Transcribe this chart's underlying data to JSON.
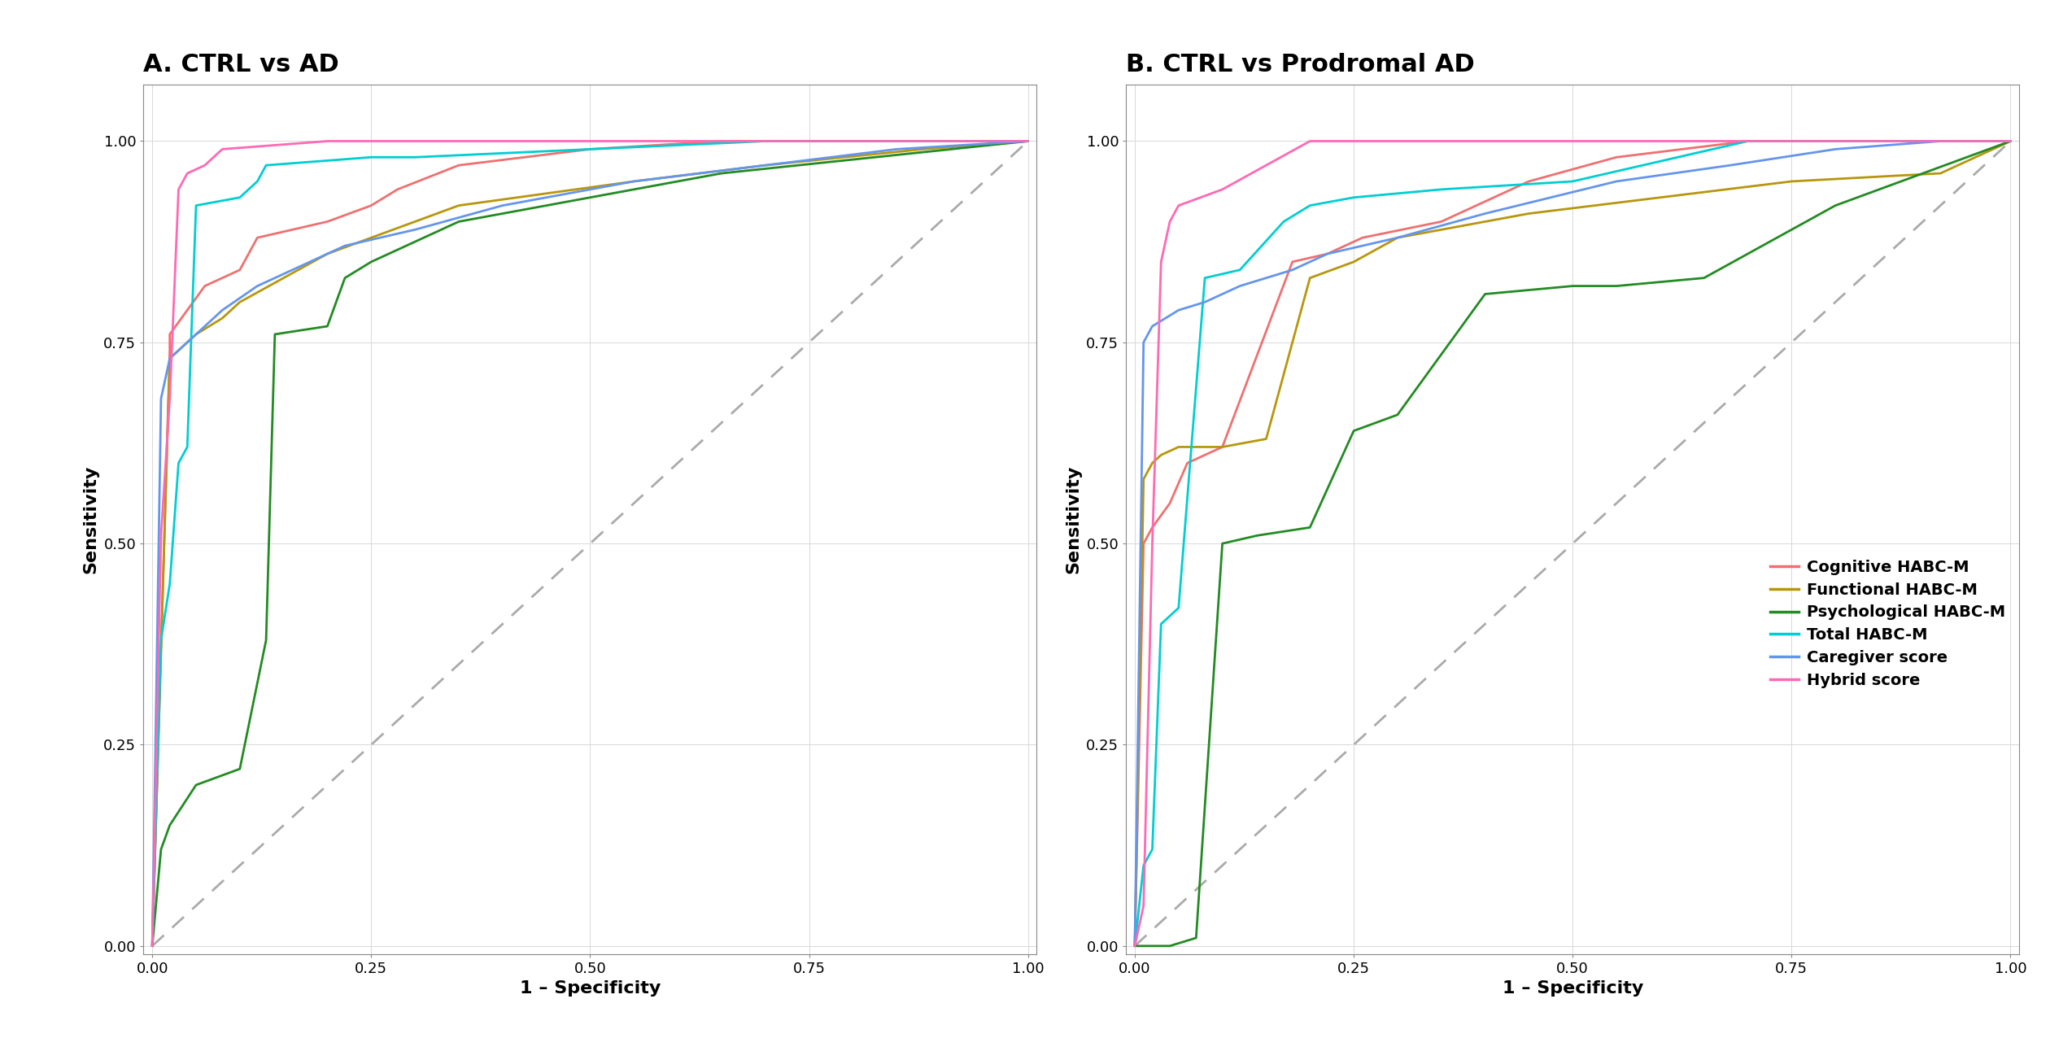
{
  "title_A": "A. CTRL vs AD",
  "title_B": "B. CTRL vs Prodromal AD",
  "xlabel": "1 – Specificity",
  "ylabel": "Sensitivity",
  "colors": {
    "cognitive": "#F07070",
    "functional": "#B8960C",
    "psychological": "#228B22",
    "total": "#00CED1",
    "caregiver": "#6495ED",
    "hybrid": "#FF69B4"
  },
  "legend_labels": [
    "Cognitive HABC-M",
    "Functional HABC-M",
    "Psychological HABC-M",
    "Total HABC-M",
    "Caregiver score",
    "Hybrid score"
  ],
  "panel_A": {
    "cognitive": {
      "x": [
        0.0,
        0.02,
        0.02,
        0.04,
        0.06,
        0.1,
        0.12,
        0.2,
        0.25,
        0.28,
        0.35,
        0.5,
        0.65,
        0.8,
        1.0
      ],
      "y": [
        0.0,
        0.74,
        0.76,
        0.79,
        0.82,
        0.84,
        0.88,
        0.9,
        0.92,
        0.94,
        0.97,
        0.99,
        1.0,
        1.0,
        1.0
      ]
    },
    "functional": {
      "x": [
        0.0,
        0.02,
        0.04,
        0.05,
        0.08,
        0.1,
        0.15,
        0.2,
        0.25,
        0.3,
        0.35,
        0.55,
        0.7,
        0.88,
        1.0
      ],
      "y": [
        0.0,
        0.73,
        0.75,
        0.76,
        0.78,
        0.8,
        0.83,
        0.86,
        0.88,
        0.9,
        0.92,
        0.95,
        0.97,
        0.99,
        1.0
      ]
    },
    "psychological": {
      "x": [
        0.0,
        0.01,
        0.02,
        0.05,
        0.1,
        0.13,
        0.14,
        0.2,
        0.22,
        0.25,
        0.35,
        0.5,
        0.65,
        1.0
      ],
      "y": [
        0.0,
        0.12,
        0.15,
        0.2,
        0.22,
        0.38,
        0.76,
        0.77,
        0.83,
        0.85,
        0.9,
        0.93,
        0.96,
        1.0
      ]
    },
    "total": {
      "x": [
        0.0,
        0.01,
        0.02,
        0.03,
        0.04,
        0.05,
        0.1,
        0.12,
        0.13,
        0.25,
        0.3,
        0.5,
        0.7,
        1.0
      ],
      "y": [
        0.0,
        0.38,
        0.45,
        0.6,
        0.62,
        0.92,
        0.93,
        0.95,
        0.97,
        0.98,
        0.98,
        0.99,
        1.0,
        1.0
      ]
    },
    "caregiver": {
      "x": [
        0.0,
        0.01,
        0.02,
        0.04,
        0.06,
        0.08,
        0.12,
        0.18,
        0.22,
        0.3,
        0.4,
        0.55,
        0.7,
        0.85,
        1.0
      ],
      "y": [
        0.0,
        0.68,
        0.73,
        0.75,
        0.77,
        0.79,
        0.82,
        0.85,
        0.87,
        0.89,
        0.92,
        0.95,
        0.97,
        0.99,
        1.0
      ]
    },
    "hybrid": {
      "x": [
        0.0,
        0.01,
        0.02,
        0.03,
        0.04,
        0.06,
        0.08,
        0.2,
        0.4,
        0.7,
        1.0
      ],
      "y": [
        0.0,
        0.51,
        0.68,
        0.94,
        0.96,
        0.97,
        0.99,
        1.0,
        1.0,
        1.0,
        1.0
      ]
    }
  },
  "panel_B": {
    "cognitive": {
      "x": [
        0.0,
        0.01,
        0.02,
        0.04,
        0.06,
        0.1,
        0.18,
        0.22,
        0.26,
        0.35,
        0.45,
        0.55,
        0.7,
        0.85,
        1.0
      ],
      "y": [
        0.0,
        0.5,
        0.52,
        0.55,
        0.6,
        0.62,
        0.85,
        0.86,
        0.88,
        0.9,
        0.95,
        0.98,
        1.0,
        1.0,
        1.0
      ]
    },
    "functional": {
      "x": [
        0.0,
        0.01,
        0.02,
        0.03,
        0.05,
        0.1,
        0.15,
        0.2,
        0.25,
        0.3,
        0.45,
        0.6,
        0.75,
        0.92,
        1.0
      ],
      "y": [
        0.0,
        0.58,
        0.6,
        0.61,
        0.62,
        0.62,
        0.63,
        0.83,
        0.85,
        0.88,
        0.91,
        0.93,
        0.95,
        0.96,
        1.0
      ]
    },
    "psychological": {
      "x": [
        0.0,
        0.02,
        0.04,
        0.07,
        0.1,
        0.14,
        0.2,
        0.25,
        0.3,
        0.4,
        0.5,
        0.55,
        0.65,
        0.8,
        1.0
      ],
      "y": [
        0.0,
        0.0,
        0.0,
        0.01,
        0.5,
        0.51,
        0.52,
        0.64,
        0.66,
        0.81,
        0.82,
        0.82,
        0.83,
        0.92,
        1.0
      ]
    },
    "total": {
      "x": [
        0.0,
        0.01,
        0.02,
        0.03,
        0.05,
        0.08,
        0.12,
        0.17,
        0.2,
        0.25,
        0.35,
        0.5,
        0.7,
        1.0
      ],
      "y": [
        0.0,
        0.1,
        0.12,
        0.4,
        0.42,
        0.83,
        0.84,
        0.9,
        0.92,
        0.93,
        0.94,
        0.95,
        1.0,
        1.0
      ]
    },
    "caregiver": {
      "x": [
        0.0,
        0.01,
        0.02,
        0.05,
        0.08,
        0.12,
        0.18,
        0.22,
        0.3,
        0.4,
        0.55,
        0.68,
        0.8,
        0.92,
        1.0
      ],
      "y": [
        0.0,
        0.75,
        0.77,
        0.79,
        0.8,
        0.82,
        0.84,
        0.86,
        0.88,
        0.91,
        0.95,
        0.97,
        0.99,
        1.0,
        1.0
      ]
    },
    "hybrid": {
      "x": [
        0.0,
        0.01,
        0.02,
        0.03,
        0.04,
        0.05,
        0.1,
        0.2,
        0.3,
        0.5,
        0.8,
        1.0
      ],
      "y": [
        0.0,
        0.05,
        0.5,
        0.85,
        0.9,
        0.92,
        0.94,
        1.0,
        1.0,
        1.0,
        1.0,
        1.0
      ]
    }
  },
  "bg_color": "#ffffff",
  "grid_color": "#d8d8d8",
  "diag_color": "#aaaaaa",
  "linewidth": 2.0,
  "title_fontsize": 22,
  "axis_label_fontsize": 16,
  "tick_fontsize": 13,
  "legend_fontsize": 14
}
